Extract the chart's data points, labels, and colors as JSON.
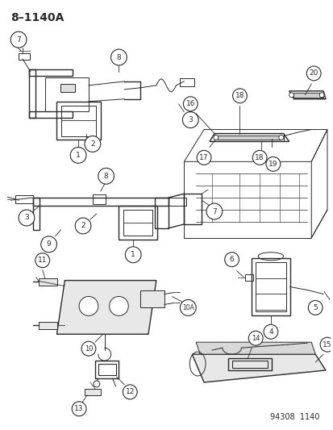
{
  "title": "8–1140A",
  "footer": "94308  1140",
  "bg_color": "#ffffff",
  "title_fontsize": 10,
  "footer_fontsize": 7,
  "fig_width": 4.14,
  "fig_height": 5.33,
  "dpi": 100,
  "line_color": "#2a2a2a"
}
